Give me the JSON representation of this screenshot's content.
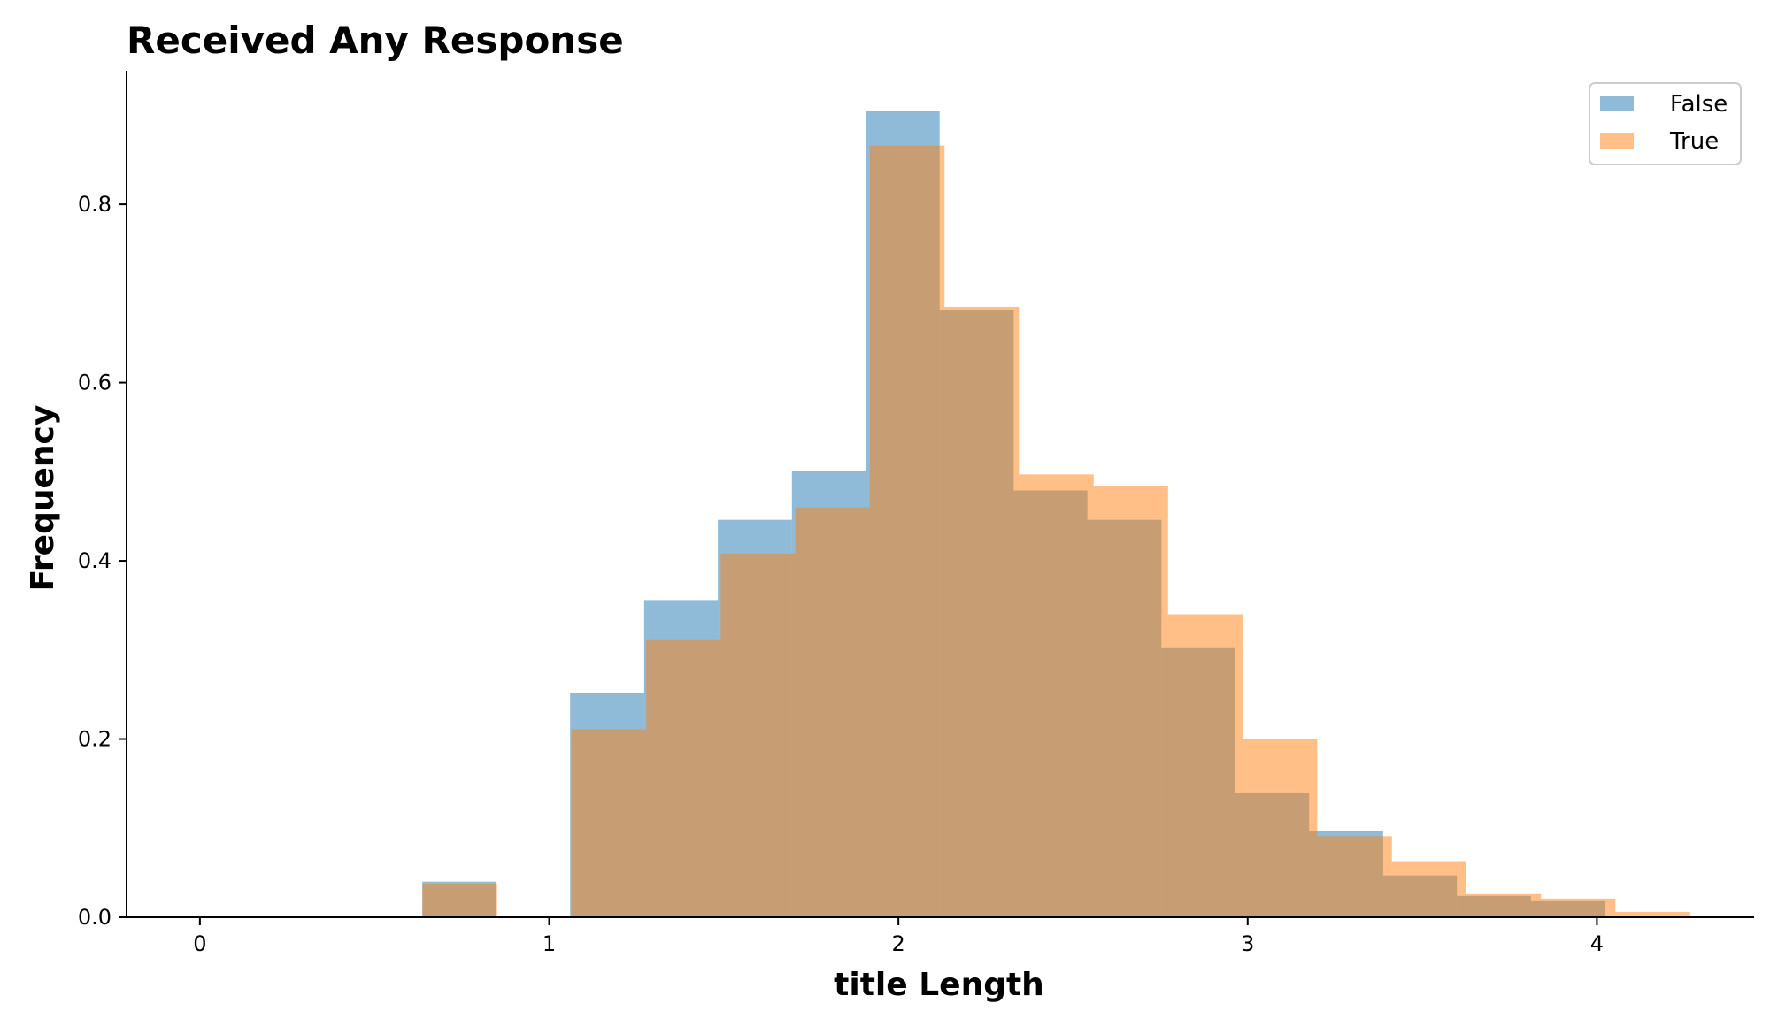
{
  "chart_data": {
    "type": "bar",
    "title": "Received Any Response",
    "xlabel": "title Length",
    "ylabel": "Frequency",
    "xlim": [
      -0.21,
      4.45
    ],
    "ylim": [
      0,
      0.95
    ],
    "x_ticks": [
      0,
      1,
      2,
      3,
      4
    ],
    "y_ticks": [
      0.0,
      0.2,
      0.4,
      0.6,
      0.8
    ],
    "x_tick_labels": [
      "0",
      "1",
      "2",
      "3",
      "4"
    ],
    "y_tick_labels": [
      "0.0",
      "0.2",
      "0.4",
      "0.6",
      "0.8"
    ],
    "grid": false,
    "legend_position": "top-right",
    "series": [
      {
        "name": "False",
        "color": "#1f77b4",
        "opacity": 0.5,
        "bin_edges": [
          0.637,
          0.848,
          1.06,
          1.272,
          1.483,
          1.695,
          1.906,
          2.118,
          2.33,
          2.541,
          2.753,
          2.965,
          3.176,
          3.388,
          3.599,
          3.811,
          4.023
        ],
        "values": [
          0.04,
          0.0,
          0.252,
          0.356,
          0.446,
          0.501,
          0.905,
          0.681,
          0.479,
          0.446,
          0.302,
          0.139,
          0.097,
          0.047,
          0.024,
          0.018
        ]
      },
      {
        "name": "True",
        "color": "#ff7f0e",
        "opacity": 0.5,
        "bin_edges": [
          0.637,
          0.851,
          1.064,
          1.278,
          1.491,
          1.705,
          1.918,
          2.132,
          2.345,
          2.559,
          2.772,
          2.986,
          3.199,
          3.413,
          3.626,
          3.84,
          4.053,
          4.267
        ],
        "values": [
          0.037,
          0.0,
          0.211,
          0.311,
          0.408,
          0.46,
          0.866,
          0.685,
          0.497,
          0.484,
          0.34,
          0.2,
          0.091,
          0.062,
          0.026,
          0.021,
          0.006
        ]
      }
    ]
  }
}
